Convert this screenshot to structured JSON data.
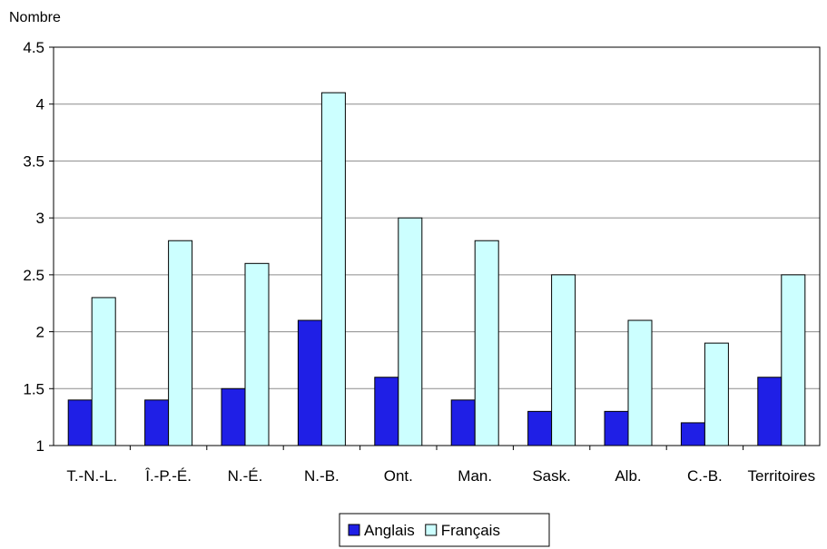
{
  "chart_data": {
    "type": "bar",
    "title": "",
    "xlabel": "",
    "ylabel": "Nombre",
    "ylim": [
      1,
      4.5
    ],
    "yticks": [
      1,
      1.5,
      2,
      2.5,
      3,
      3.5,
      4,
      4.5
    ],
    "ytick_labels": [
      "1",
      "1.5",
      "2",
      "2.5",
      "3",
      "3.5",
      "4",
      "4.5"
    ],
    "grid": true,
    "legend_position": "bottom",
    "categories": [
      "T.-N.-L.",
      "Î.-P.-É.",
      "N.-É.",
      "N.-B.",
      "Ont.",
      "Man.",
      "Sask.",
      "Alb.",
      "C.-B.",
      "Territoires"
    ],
    "series": [
      {
        "name": "Anglais",
        "color": "#1f1fe6",
        "values": [
          1.4,
          1.4,
          1.5,
          2.1,
          1.6,
          1.4,
          1.3,
          1.3,
          1.2,
          1.6
        ]
      },
      {
        "name": "Français",
        "color": "#ccffff",
        "values": [
          2.3,
          2.8,
          2.6,
          4.1,
          3.0,
          2.8,
          2.5,
          2.1,
          1.9,
          2.5
        ]
      }
    ]
  }
}
